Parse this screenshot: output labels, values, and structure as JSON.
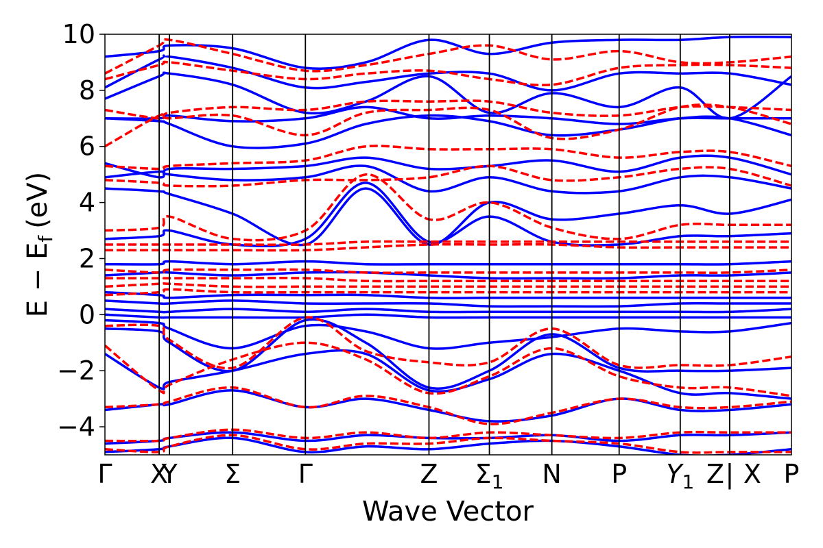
{
  "chart_data": {
    "type": "line",
    "title": "",
    "xlabel": "Wave Vector",
    "ylabel": "E − E",
    "ylabel_sub": "f",
    "ylabel_unit": "(eV)",
    "ylim": [
      -5,
      10
    ],
    "xlim": [
      0,
      1
    ],
    "grid": false,
    "legend": "none",
    "yticks": [
      {
        "value": -4,
        "label": "−4"
      },
      {
        "value": -2,
        "label": "−2"
      },
      {
        "value": 0,
        "label": "0"
      },
      {
        "value": 2,
        "label": "2"
      },
      {
        "value": 4,
        "label": "4"
      },
      {
        "value": 6,
        "label": "6"
      },
      {
        "value": 8,
        "label": "8"
      },
      {
        "value": 10,
        "label": "10"
      }
    ],
    "high_symmetry_points": [
      {
        "position": 0.0,
        "label": "Γ"
      },
      {
        "position": 0.079,
        "label": "X"
      },
      {
        "position": 0.094,
        "label": "Y"
      },
      {
        "position": 0.186,
        "label": "Σ"
      },
      {
        "position": 0.292,
        "label": "Γ"
      },
      {
        "position": 0.472,
        "label": "Z"
      },
      {
        "position": 0.56,
        "label": "Σ",
        "sub": "1"
      },
      {
        "position": 0.651,
        "label": "N"
      },
      {
        "position": 0.749,
        "label": "P"
      },
      {
        "position": 0.838,
        "label": "Y",
        "sub": "1",
        "italic": true
      },
      {
        "position": 0.91,
        "label": "Z",
        "break_after": "|"
      },
      {
        "position": 0.91,
        "label": "X",
        "break_before": true
      },
      {
        "position": 1.0,
        "label": "P"
      }
    ],
    "series": [
      {
        "style": "solid",
        "color": "#0000ff",
        "x": [
          0,
          0.079,
          0.094,
          0.186,
          0.292,
          0.38,
          0.472,
          0.56,
          0.651,
          0.749,
          0.838,
          0.91,
          1.0
        ],
        "bands": [
          [
            -4.9,
            -4.8,
            -4.7,
            -4.4,
            -4.9,
            -4.7,
            -4.8,
            -4.6,
            -4.5,
            -4.7,
            -5.0,
            -5.0,
            -4.8
          ],
          [
            -4.6,
            -4.5,
            -4.4,
            -4.2,
            -4.5,
            -4.3,
            -4.4,
            -4.4,
            -4.3,
            -4.5,
            -4.3,
            -4.3,
            -4.2
          ],
          [
            -3.4,
            -3.2,
            -3.2,
            -2.7,
            -3.3,
            -3.0,
            -3.4,
            -3.8,
            -3.6,
            -3.0,
            -3.4,
            -3.4,
            -3.2
          ],
          [
            -1.4,
            -2.6,
            -2.4,
            -2.0,
            -1.4,
            -1.4,
            -2.7,
            -2.3,
            -1.4,
            -2.0,
            -2.8,
            -2.8,
            -3.0
          ],
          [
            -0.5,
            -0.6,
            -1.0,
            -2.0,
            -0.2,
            -1.0,
            -2.6,
            -2.0,
            -0.7,
            -1.9,
            -2.0,
            -2.0,
            -1.9
          ],
          [
            -0.2,
            -0.3,
            -0.5,
            -1.2,
            -0.4,
            -0.6,
            -1.2,
            -1.0,
            -0.8,
            -0.5,
            -0.6,
            -0.6,
            -0.3
          ],
          [
            0.0,
            -0.1,
            -0.1,
            -0.1,
            -0.1,
            0.0,
            -0.1,
            -0.1,
            -0.1,
            -0.1,
            -0.1,
            -0.1,
            -0.1
          ],
          [
            0.2,
            0.1,
            0.1,
            0.2,
            0.1,
            0.2,
            0.1,
            0.1,
            0.1,
            0.1,
            0.1,
            0.1,
            0.2
          ],
          [
            0.5,
            0.4,
            0.4,
            0.5,
            0.4,
            0.4,
            0.4,
            0.3,
            0.3,
            0.3,
            0.4,
            0.4,
            0.4
          ],
          [
            0.8,
            0.7,
            0.6,
            0.7,
            0.7,
            0.7,
            0.6,
            0.6,
            0.6,
            0.6,
            0.6,
            0.6,
            0.6
          ],
          [
            1.4,
            1.5,
            1.5,
            1.4,
            1.5,
            1.5,
            1.4,
            1.3,
            1.3,
            1.3,
            1.4,
            1.4,
            1.5
          ],
          [
            1.8,
            1.8,
            1.9,
            1.8,
            1.9,
            1.8,
            1.8,
            1.8,
            1.8,
            1.8,
            1.8,
            1.8,
            1.9
          ],
          [
            2.7,
            2.8,
            3.0,
            2.5,
            2.7,
            4.7,
            2.6,
            3.5,
            2.6,
            2.5,
            2.8,
            2.8,
            2.9
          ],
          [
            4.5,
            4.4,
            4.3,
            3.6,
            2.5,
            4.5,
            2.5,
            4.0,
            3.4,
            3.6,
            3.9,
            3.6,
            4.1
          ],
          [
            4.9,
            5.1,
            5.0,
            4.8,
            4.9,
            5.3,
            4.4,
            4.9,
            4.4,
            4.4,
            4.9,
            4.9,
            4.5
          ],
          [
            5.4,
            4.9,
            5.2,
            5.2,
            5.3,
            5.6,
            5.2,
            5.3,
            5.5,
            5.1,
            5.6,
            5.6,
            5.0
          ],
          [
            7.0,
            6.9,
            6.8,
            6.0,
            6.1,
            6.8,
            7.1,
            6.9,
            6.4,
            6.6,
            7.0,
            7.0,
            6.4
          ],
          [
            7.0,
            7.0,
            7.1,
            6.9,
            7.0,
            7.4,
            7.0,
            7.1,
            7.0,
            6.8,
            7.0,
            7.0,
            7.0
          ],
          [
            7.7,
            8.5,
            8.6,
            8.2,
            7.2,
            7.6,
            8.5,
            7.2,
            7.9,
            7.4,
            8.1,
            7.0,
            8.5
          ],
          [
            8.1,
            9.1,
            9.2,
            8.8,
            8.1,
            8.3,
            8.6,
            8.6,
            8.0,
            8.6,
            8.6,
            8.6,
            8.2
          ],
          [
            9.2,
            9.4,
            9.6,
            9.5,
            8.8,
            9.0,
            9.8,
            9.3,
            9.7,
            9.8,
            9.8,
            9.9,
            9.9
          ]
        ]
      },
      {
        "style": "dashed",
        "color": "#ff0000",
        "x": [
          0,
          0.079,
          0.094,
          0.186,
          0.292,
          0.38,
          0.472,
          0.56,
          0.651,
          0.749,
          0.838,
          0.91,
          1.0
        ],
        "bands": [
          [
            -4.8,
            -4.9,
            -4.7,
            -4.3,
            -4.8,
            -4.6,
            -4.6,
            -4.4,
            -4.5,
            -4.6,
            -4.9,
            -4.9,
            -4.9
          ],
          [
            -4.5,
            -4.5,
            -4.4,
            -4.1,
            -4.4,
            -4.2,
            -4.4,
            -4.2,
            -4.3,
            -4.4,
            -4.2,
            -4.2,
            -4.2
          ],
          [
            -3.3,
            -3.2,
            -3.1,
            -2.6,
            -3.3,
            -2.9,
            -3.3,
            -3.9,
            -3.5,
            -3.0,
            -3.3,
            -3.3,
            -3.1
          ],
          [
            -1.1,
            -2.7,
            -2.5,
            -1.6,
            -1.0,
            -1.6,
            -2.8,
            -2.2,
            -1.2,
            -2.2,
            -2.6,
            -2.6,
            -2.9
          ],
          [
            -0.4,
            -0.4,
            -0.9,
            -1.9,
            -0.1,
            -1.3,
            -1.7,
            -1.7,
            -0.5,
            -1.8,
            -1.8,
            -1.8,
            -1.5
          ],
          [
            0.7,
            0.8,
            0.9,
            0.8,
            0.8,
            0.8,
            0.8,
            0.8,
            0.8,
            0.8,
            0.8,
            0.8,
            0.8
          ],
          [
            1.0,
            1.1,
            1.1,
            1.0,
            1.0,
            1.0,
            1.0,
            1.0,
            1.0,
            1.0,
            1.0,
            1.0,
            1.0
          ],
          [
            1.3,
            1.3,
            1.3,
            1.3,
            1.3,
            1.2,
            1.2,
            1.2,
            1.2,
            1.2,
            1.2,
            1.2,
            1.2
          ],
          [
            1.6,
            1.5,
            1.6,
            1.6,
            1.6,
            1.5,
            1.5,
            1.5,
            1.5,
            1.5,
            1.5,
            1.5,
            1.6
          ],
          [
            2.3,
            2.3,
            2.3,
            2.3,
            2.3,
            2.4,
            2.5,
            2.5,
            2.5,
            2.4,
            2.4,
            2.4,
            2.4
          ],
          [
            2.5,
            2.5,
            2.5,
            2.5,
            2.5,
            2.6,
            2.6,
            2.6,
            2.6,
            2.6,
            2.6,
            2.6,
            2.6
          ],
          [
            3.0,
            3.1,
            3.5,
            2.7,
            3.0,
            5.0,
            3.4,
            4.0,
            3.1,
            2.7,
            3.2,
            3.2,
            3.2
          ],
          [
            4.8,
            4.7,
            4.6,
            4.6,
            4.8,
            4.8,
            4.9,
            5.3,
            4.8,
            4.9,
            5.2,
            5.2,
            4.6
          ],
          [
            5.3,
            5.2,
            5.3,
            5.4,
            5.5,
            6.0,
            5.9,
            5.9,
            5.9,
            5.6,
            5.8,
            5.8,
            5.3
          ],
          [
            6.0,
            7.1,
            7.0,
            7.1,
            6.4,
            7.2,
            7.3,
            7.3,
            6.3,
            6.6,
            7.4,
            7.4,
            6.8
          ],
          [
            7.3,
            7.0,
            7.2,
            7.4,
            7.3,
            7.6,
            7.6,
            7.6,
            7.2,
            7.1,
            7.4,
            7.4,
            7.3
          ],
          [
            8.4,
            8.9,
            9.0,
            8.7,
            8.4,
            8.6,
            8.7,
            8.4,
            8.2,
            8.8,
            8.9,
            8.9,
            8.8
          ],
          [
            8.6,
            9.6,
            9.8,
            9.3,
            8.7,
            8.9,
            9.3,
            9.6,
            9.1,
            9.4,
            9.0,
            9.0,
            9.2
          ]
        ]
      }
    ]
  }
}
